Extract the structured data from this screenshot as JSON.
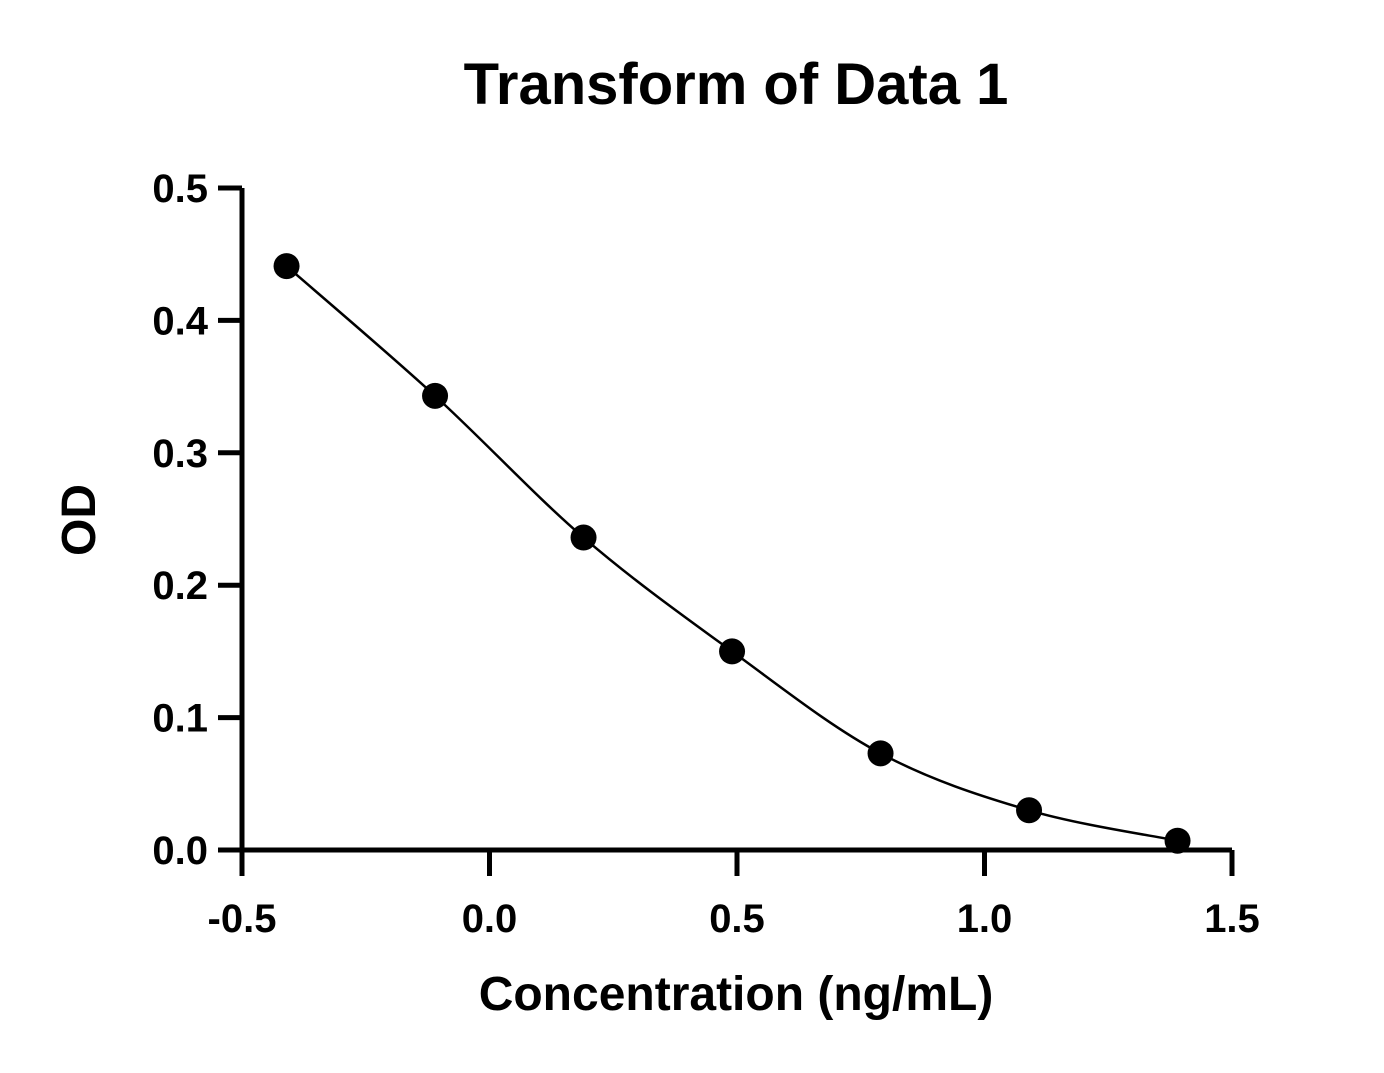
{
  "chart_data": {
    "type": "scatter",
    "title": "Transform of Data 1",
    "xlabel": "Concentration (ng/mL)",
    "ylabel": "OD",
    "xlim": [
      -0.5,
      1.5
    ],
    "ylim": [
      0.0,
      0.5
    ],
    "x_ticks": [
      "-0.5",
      "0.0",
      "0.5",
      "1.0",
      "1.5"
    ],
    "y_ticks": [
      "0.0",
      "0.1",
      "0.2",
      "0.3",
      "0.4",
      "0.5"
    ],
    "grid": false,
    "legend": "none",
    "series": [
      {
        "x": [
          -0.41,
          -0.11,
          0.19,
          0.49,
          0.79,
          1.09,
          1.39
        ],
        "y": [
          0.441,
          0.343,
          0.236,
          0.15,
          0.073,
          0.03,
          0.007
        ],
        "marker": "filled-circle",
        "fit_curve": "smooth-line",
        "color": "#000000"
      }
    ]
  }
}
